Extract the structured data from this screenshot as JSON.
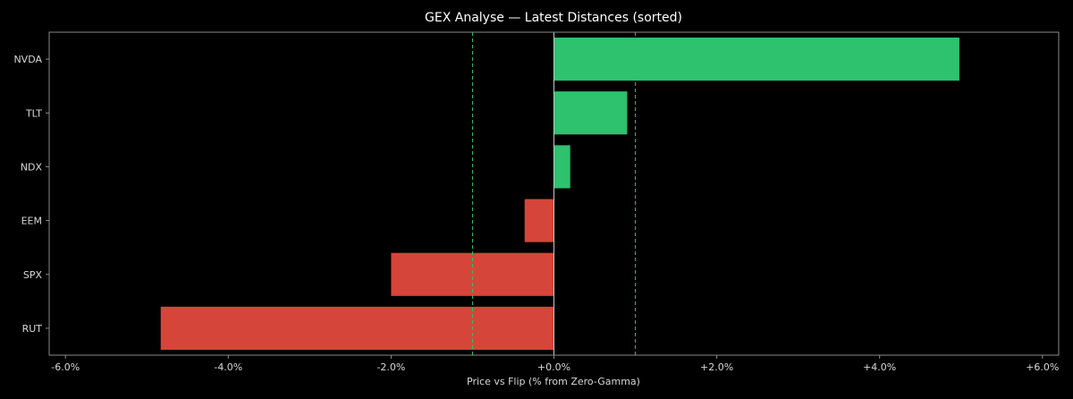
{
  "chart_data": {
    "type": "bar",
    "orientation": "horizontal",
    "title": "GEX Analyse — Latest Distances (sorted)",
    "xlabel": "Price vs Flip (% from Zero-Gamma)",
    "ylabel": "",
    "categories": [
      "NVDA",
      "TLT",
      "NDX",
      "EEM",
      "SPX",
      "RUT"
    ],
    "values": [
      4.98,
      0.9,
      0.2,
      -0.36,
      -2.0,
      -4.83
    ],
    "xlim": [
      -6.2,
      6.2
    ],
    "xticks": [
      -6,
      -4,
      -2,
      0,
      2,
      4,
      6
    ],
    "xtick_labels": [
      "-6.0%",
      "-4.0%",
      "-2.0%",
      "+0.0%",
      "+2.0%",
      "+4.0%",
      "+6.0%"
    ],
    "reference_lines": [
      -1.0,
      1.0
    ],
    "colors": {
      "positive": "#2ec16e",
      "negative": "#d64539",
      "reference_line": "#2ec16e",
      "zero_line": "#c8c8c8",
      "frame": "#8a8a8a",
      "background": "#000000"
    },
    "grid": false,
    "legend": "none"
  }
}
